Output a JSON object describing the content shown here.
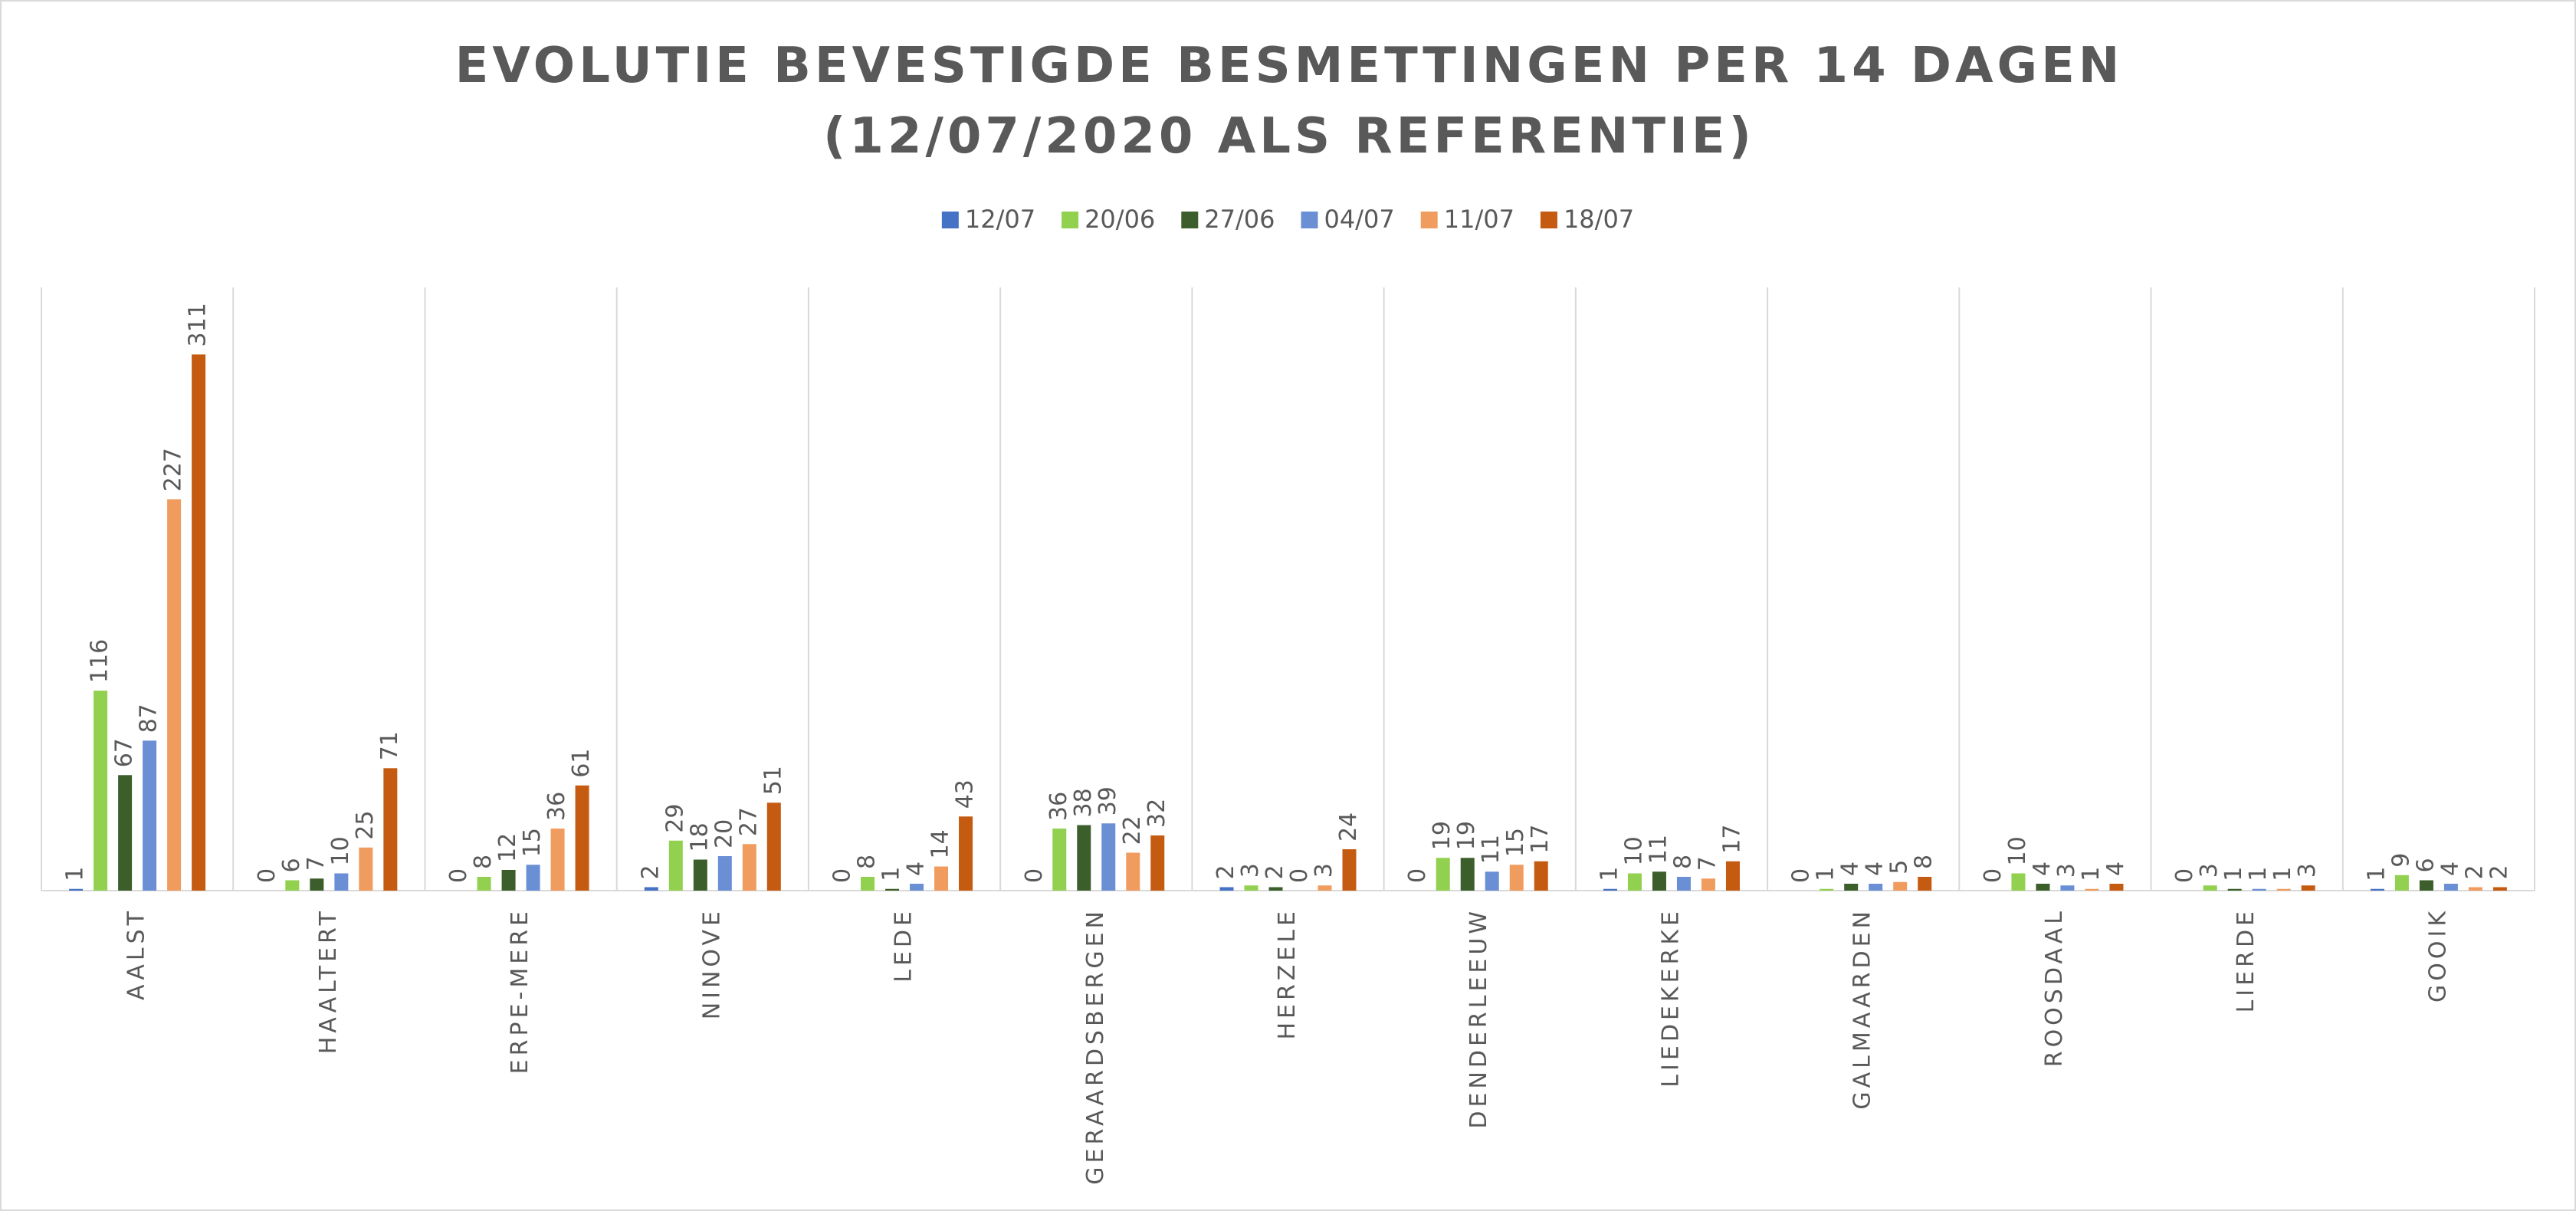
{
  "chart_data": {
    "type": "bar",
    "title": "EVOLUTIE BEVESTIGDE BESMETTINGEN PER 14 DAGEN (12/07/2020 ALS REFERENTIE)",
    "categories": [
      "AALST",
      "HAALTERT",
      "ERPE-MERE",
      "NINOVE",
      "LEDE",
      "GERAARDSBERGEN",
      "HERZELE",
      "DENDERLEEUW",
      "LIEDEKERKE",
      "GALMAARDEN",
      "ROOSDAAL",
      "LIERDE",
      "GOOIK"
    ],
    "series": [
      {
        "name": "12/07",
        "color": "#4472c4",
        "values": [
          1,
          0,
          0,
          2,
          0,
          0,
          2,
          0,
          1,
          0,
          0,
          0,
          1
        ]
      },
      {
        "name": "20/06",
        "color": "#92d050",
        "values": [
          116,
          6,
          8,
          29,
          8,
          36,
          3,
          19,
          10,
          1,
          10,
          3,
          9
        ]
      },
      {
        "name": "27/06",
        "color": "#3b5e2b",
        "values": [
          67,
          7,
          12,
          18,
          1,
          38,
          2,
          19,
          11,
          4,
          4,
          1,
          6
        ]
      },
      {
        "name": "04/07",
        "color": "#6a8fd4",
        "values": [
          87,
          10,
          15,
          20,
          4,
          39,
          0,
          11,
          8,
          4,
          3,
          1,
          4
        ]
      },
      {
        "name": "11/07",
        "color": "#f19c5f",
        "values": [
          227,
          25,
          36,
          27,
          14,
          22,
          3,
          15,
          7,
          5,
          1,
          1,
          2
        ]
      },
      {
        "name": "18/07",
        "color": "#c55a11",
        "values": [
          311,
          71,
          61,
          51,
          43,
          32,
          24,
          17,
          17,
          8,
          4,
          3,
          2
        ]
      }
    ]
  }
}
